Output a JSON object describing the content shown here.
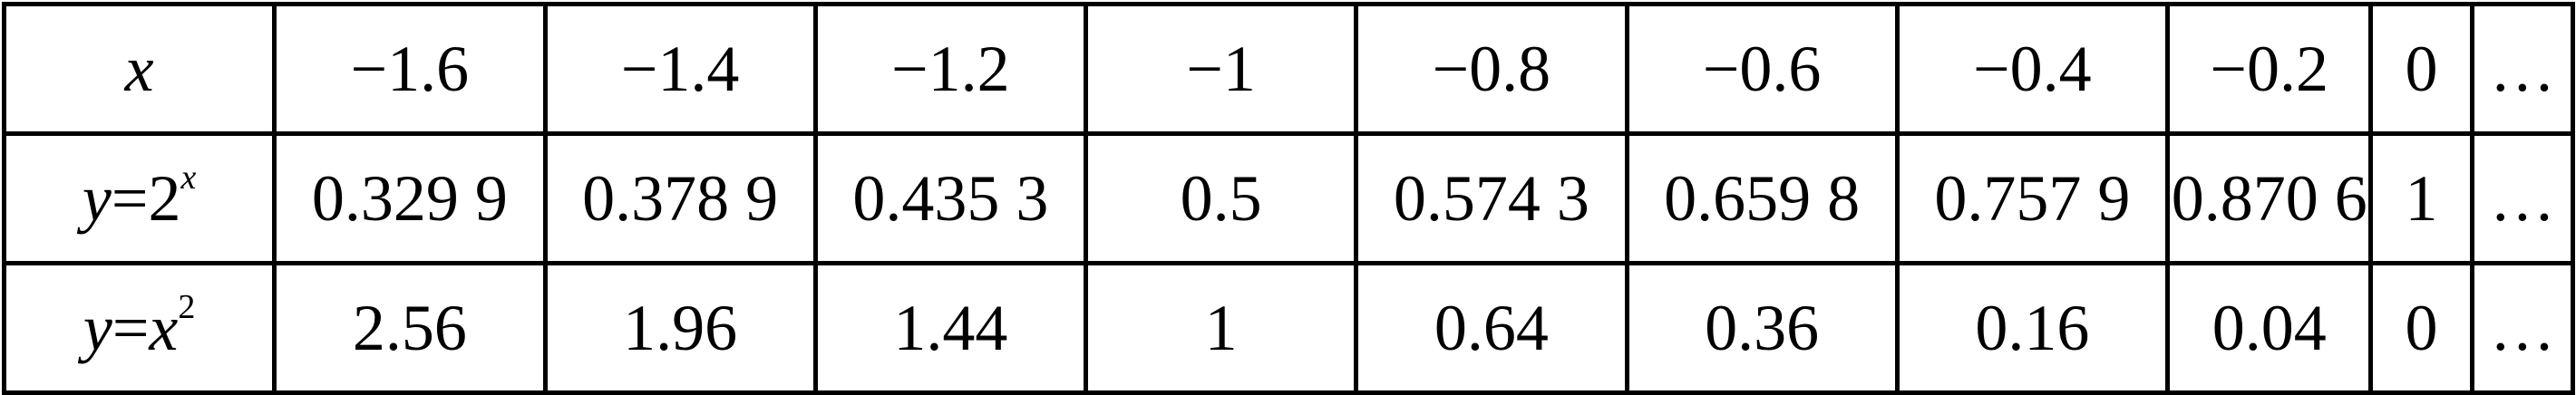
{
  "table": {
    "rows": [
      {
        "head": {
          "var": "x"
        },
        "cells": [
          "−1.6",
          "−1.4",
          "−1.2",
          "−1",
          "−0.8",
          "−0.6",
          "−0.4",
          "−0.2",
          "0",
          "…"
        ]
      },
      {
        "head": {
          "var": "y",
          "eq": "=",
          "base": "2",
          "exp": "x"
        },
        "cells": [
          "0.329 9",
          "0.378 9",
          "0.435 3",
          "0.5",
          "0.574 3",
          "0.659 8",
          "0.757 9",
          "0.870 6",
          "1",
          "…"
        ]
      },
      {
        "head": {
          "var": "y",
          "eq": "=",
          "base": "x",
          "exp": "2"
        },
        "cells": [
          "2.56",
          "1.96",
          "1.44",
          "1",
          "0.64",
          "0.36",
          "0.16",
          "0.04",
          "0",
          "…"
        ]
      }
    ]
  }
}
